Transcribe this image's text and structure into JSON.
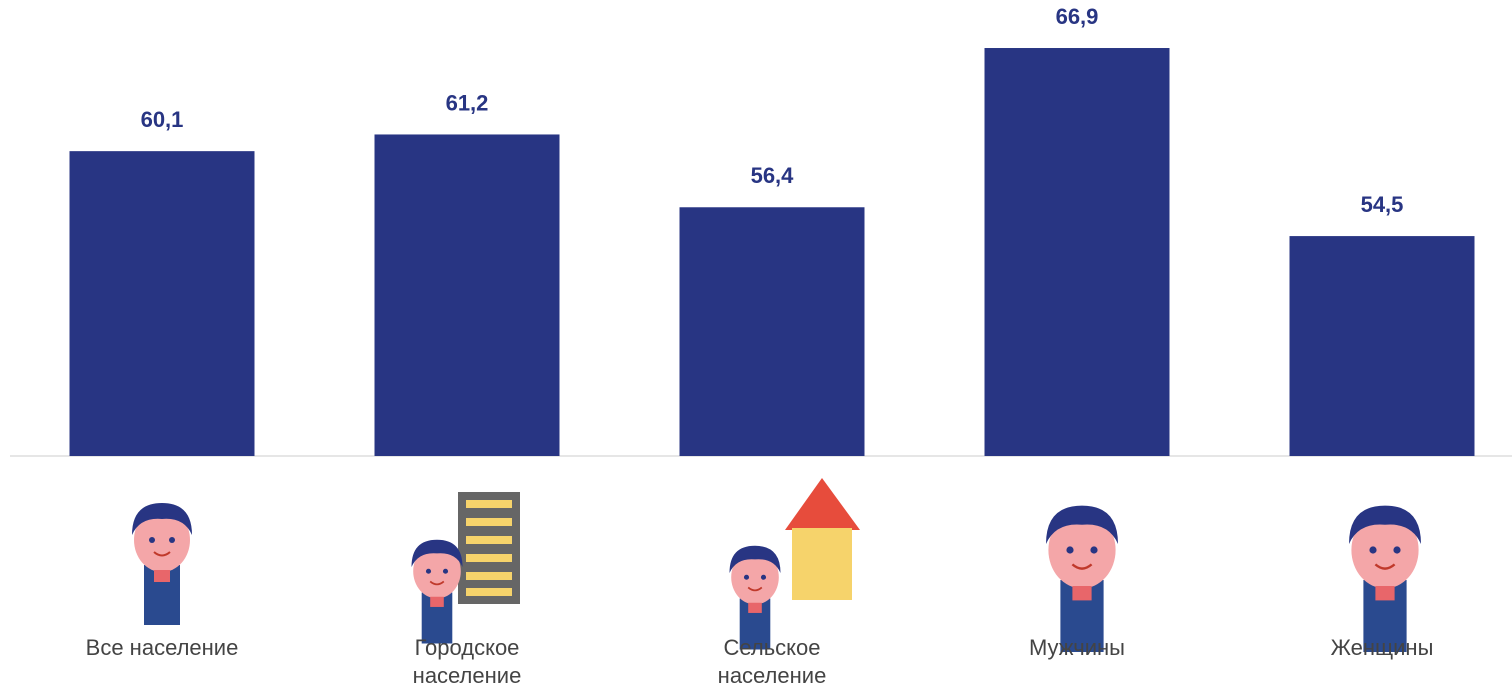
{
  "chart_data": {
    "type": "bar",
    "categories": [
      "Все население",
      "Городское население",
      "Сельское население",
      "Мужчины",
      "Женщины"
    ],
    "values": [
      60.1,
      61.2,
      56.4,
      66.9,
      54.5
    ],
    "value_labels": [
      "60,1",
      "61,2",
      "56,4",
      "66,9",
      "54,5"
    ],
    "color": "#283583",
    "ylim": [
      40,
      70
    ]
  }
}
